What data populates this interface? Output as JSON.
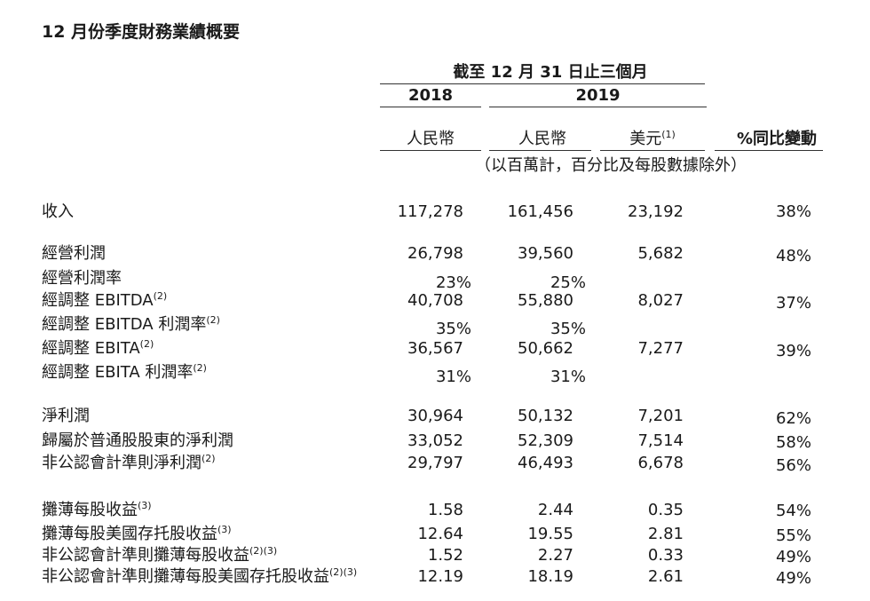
{
  "title": "12 月份季度財務業績概要",
  "header": {
    "period": "截至 12 月 31 日止三個月",
    "year_2018": "2018",
    "year_2019": "2019",
    "col_rmb_2018": "人民幣",
    "col_rmb_2019": "人民幣",
    "col_usd": "美元",
    "col_usd_note": "(1)",
    "col_yoy": "%同比變動",
    "unit_note": "（以百萬計，百分比及每股數據除外）"
  },
  "rows": [
    {
      "label": "收入",
      "note": "",
      "rmb2018": "117,278",
      "rmb2019": "161,456",
      "usd": "23,192",
      "yoy": "38%"
    },
    {
      "label": "經營利潤",
      "note": "",
      "rmb2018": "26,798",
      "rmb2019": "39,560",
      "usd": "5,682",
      "yoy": "48%"
    },
    {
      "label": "經營利潤率",
      "note": "",
      "rmb2018": "23%",
      "rmb2019": "25%",
      "usd": "",
      "yoy": ""
    },
    {
      "label": "經調整 EBITDA",
      "note": "(2)",
      "rmb2018": "40,708",
      "rmb2019": "55,880",
      "usd": "8,027",
      "yoy": "37%"
    },
    {
      "label": "經調整 EBITDA 利潤率",
      "note": "(2)",
      "rmb2018": "35%",
      "rmb2019": "35%",
      "usd": "",
      "yoy": ""
    },
    {
      "label": "經調整 EBITA",
      "note": "(2)",
      "rmb2018": "36,567",
      "rmb2019": "50,662",
      "usd": "7,277",
      "yoy": "39%"
    },
    {
      "label": "經調整 EBITA 利潤率",
      "note": "(2)",
      "rmb2018": "31%",
      "rmb2019": "31%",
      "usd": "",
      "yoy": ""
    },
    {
      "label": "淨利潤",
      "note": "",
      "rmb2018": "30,964",
      "rmb2019": "50,132",
      "usd": "7,201",
      "yoy": "62%"
    },
    {
      "label": "歸屬於普通股股東的淨利潤",
      "note": "",
      "rmb2018": "33,052",
      "rmb2019": "52,309",
      "usd": "7,514",
      "yoy": "58%"
    },
    {
      "label": "非公認會計準則淨利潤",
      "note": "(2)",
      "rmb2018": "29,797",
      "rmb2019": "46,493",
      "usd": "6,678",
      "yoy": "56%"
    },
    {
      "label": "攤薄每股收益",
      "note": "(3)",
      "rmb2018": "1.58",
      "rmb2019": "2.44",
      "usd": "0.35",
      "yoy": "54%"
    },
    {
      "label": "攤薄每股美國存托股收益",
      "note": "(3)",
      "rmb2018": "12.64",
      "rmb2019": "19.55",
      "usd": "2.81",
      "yoy": "55%"
    },
    {
      "label": "非公認會計準則攤薄每股收益",
      "note": "(2)(3)",
      "rmb2018": "1.52",
      "rmb2019": "2.27",
      "usd": "0.33",
      "yoy": "49%"
    },
    {
      "label": "非公認會計準則攤薄每股美國存托股收益",
      "note": "(2)(3)",
      "rmb2018": "12.19",
      "rmb2019": "18.19",
      "usd": "2.61",
      "yoy": "49%"
    }
  ]
}
